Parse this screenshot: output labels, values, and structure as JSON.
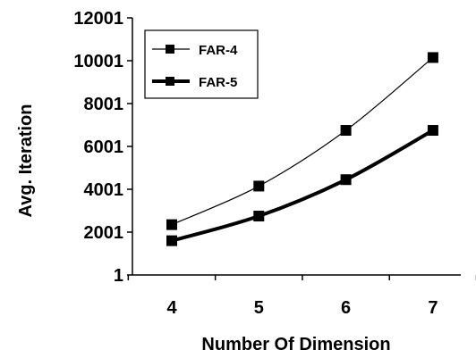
{
  "chart_data": {
    "type": "line",
    "xlabel": "Number Of Dimension",
    "ylabel": "Avg. Iteration",
    "categories": [
      "4",
      "5",
      "6",
      "7"
    ],
    "x": [
      4,
      5,
      6,
      7
    ],
    "ylim": [
      1,
      12001
    ],
    "yticks": [
      "1",
      "2001",
      "4001",
      "6001",
      "8001",
      "10001",
      "12001"
    ],
    "legend_position": "top-left",
    "grid": false,
    "series": [
      {
        "name": "FAR-4",
        "values": [
          2350,
          4150,
          6750,
          10150
        ],
        "line": "thin",
        "color": "#000000",
        "marker": "square"
      },
      {
        "name": "FAR-5",
        "values": [
          1600,
          2750,
          4450,
          6750
        ],
        "line": "thick",
        "color": "#000000",
        "marker": "square"
      }
    ]
  }
}
